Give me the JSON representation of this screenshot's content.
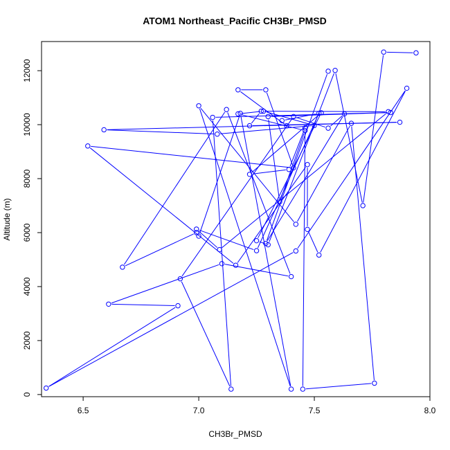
{
  "chart_data": {
    "type": "line",
    "title": "ATOM1 Northeast_Pacific CH3Br_PMSD",
    "xlabel": "CH3Br_PMSD",
    "ylabel": "Altitude (m)",
    "xlim": [
      6.32,
      8.0
    ],
    "ylim": [
      -80,
      13080
    ],
    "xticks": [
      6.5,
      7.0,
      7.5,
      8.0
    ],
    "xtick_labels": [
      "6.5",
      "7.0",
      "7.5",
      "8.0"
    ],
    "yticks": [
      0,
      2000,
      4000,
      6000,
      8000,
      10000,
      12000
    ],
    "ytick_labels": [
      "0",
      "2000",
      "4000",
      "6000",
      "8000",
      "10000",
      "12000"
    ],
    "grid": false,
    "series": [
      {
        "color": "#0000ff",
        "marker": "open-circle",
        "points": [
          [
            7.56,
            11980
          ],
          [
            7.29,
            5600
          ],
          [
            7.63,
            10400
          ],
          [
            7.56,
            9870
          ],
          [
            7.41,
            10300
          ],
          [
            6.92,
            4290
          ],
          [
            7.14,
            200
          ],
          [
            7.06,
            10270
          ],
          [
            7.83,
            10450
          ],
          [
            7.3,
            10300
          ],
          [
            7.35,
            7140
          ],
          [
            7.46,
            9780
          ],
          [
            7.17,
            10400
          ],
          [
            7.28,
            10500
          ],
          [
            7.5,
            9970
          ],
          [
            7.08,
            9650
          ],
          [
            6.59,
            9810
          ],
          [
            7.87,
            10090
          ],
          [
            7.22,
            9960
          ],
          [
            7.27,
            10500
          ],
          [
            7.82,
            10480
          ],
          [
            7.09,
            5370
          ],
          [
            6.99,
            6130
          ],
          [
            7.25,
            5330
          ],
          [
            7.52,
            10420
          ],
          [
            7.36,
            10150
          ],
          [
            7.38,
            9960
          ],
          [
            7.17,
            11290
          ],
          [
            7.29,
            11290
          ],
          [
            7.41,
            8400
          ],
          [
            6.52,
            9210
          ],
          [
            7.16,
            4790
          ],
          [
            7.47,
            8520
          ],
          [
            7.47,
            6120
          ],
          [
            7.52,
            5170
          ],
          [
            7.9,
            11350
          ],
          [
            7.42,
            5320
          ],
          [
            6.34,
            240
          ],
          [
            6.91,
            3290
          ],
          [
            6.61,
            3350
          ],
          [
            7.1,
            4850
          ],
          [
            7.4,
            4370
          ],
          [
            7.12,
            10560
          ],
          [
            6.67,
            4720
          ],
          [
            6.99,
            6000
          ],
          [
            7.0,
            5870
          ],
          [
            7.18,
            10420
          ],
          [
            7.4,
            200
          ],
          [
            7.0,
            10700
          ],
          [
            7.42,
            6310
          ],
          [
            7.66,
            10050
          ],
          [
            7.76,
            420
          ],
          [
            7.45,
            200
          ],
          [
            7.46,
            9880
          ],
          [
            7.39,
            8340
          ],
          [
            7.22,
            8160
          ],
          [
            7.53,
            10440
          ],
          [
            7.25,
            5700
          ],
          [
            7.3,
            5550
          ],
          [
            7.59,
            12010
          ],
          [
            7.71,
            7000
          ],
          [
            7.8,
            12690
          ],
          [
            7.94,
            12660
          ]
        ]
      }
    ]
  }
}
